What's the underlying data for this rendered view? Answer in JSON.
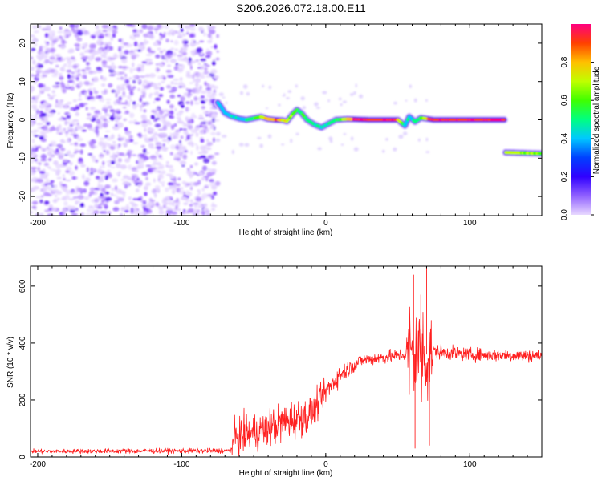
{
  "title": "S206.2026.072.18.00.E11",
  "chart_data": [
    {
      "type": "heatmap",
      "xlabel": "Height of straight line (km)",
      "ylabel": "Frequency (Hz)",
      "xlim": [
        -205,
        150
      ],
      "ylim": [
        -25,
        25
      ],
      "xticks": [
        -200,
        -100,
        0,
        100
      ],
      "yticks": [
        -20,
        -10,
        0,
        10,
        20
      ],
      "colorbar": {
        "label": "Normalized spectral amplitude",
        "range": [
          0,
          1
        ],
        "ticks": [
          "0.0",
          "0.2",
          "0.4",
          "0.6",
          "0.8"
        ],
        "tick_values": [
          0,
          0.2,
          0.4,
          0.6,
          0.8
        ],
        "colors": [
          "#ffffff",
          "#e8d8ff",
          "#9060ff",
          "#3000ff",
          "#0040ff",
          "#00c8ff",
          "#00ff80",
          "#40ff00",
          "#c0ff00",
          "#ffc000",
          "#ff4000",
          "#ff0080"
        ]
      },
      "noise_region": {
        "x": [
          -205,
          -75
        ],
        "y": [
          -25,
          25
        ],
        "amplitude": [
          0.02,
          0.22
        ]
      },
      "ridge": [
        {
          "x": -75,
          "y": 4.5
        },
        {
          "x": -73,
          "y": 3.5
        },
        {
          "x": -70,
          "y": 1.8
        },
        {
          "x": -66,
          "y": 1.0
        },
        {
          "x": -60,
          "y": 0.3
        },
        {
          "x": -55,
          "y": 0.0
        },
        {
          "x": -50,
          "y": 0.4
        },
        {
          "x": -45,
          "y": 0.8
        },
        {
          "x": -40,
          "y": 0.2
        },
        {
          "x": -35,
          "y": 0.0
        },
        {
          "x": -30,
          "y": -0.1
        },
        {
          "x": -27,
          "y": -0.4
        },
        {
          "x": -23,
          "y": 1.5
        },
        {
          "x": -20,
          "y": 2.6
        },
        {
          "x": -17,
          "y": 1.8
        },
        {
          "x": -13,
          "y": 0.0
        },
        {
          "x": -8,
          "y": -1.2
        },
        {
          "x": -3,
          "y": -2.0
        },
        {
          "x": 2,
          "y": -1.0
        },
        {
          "x": 7,
          "y": 0.0
        },
        {
          "x": 15,
          "y": 0.2
        },
        {
          "x": 30,
          "y": 0.0
        },
        {
          "x": 50,
          "y": 0.0
        },
        {
          "x": 55,
          "y": -1.5
        },
        {
          "x": 58,
          "y": 0.8
        },
        {
          "x": 62,
          "y": -0.5
        },
        {
          "x": 66,
          "y": 0.5
        },
        {
          "x": 75,
          "y": 0.0
        },
        {
          "x": 100,
          "y": 0.0
        },
        {
          "x": 124,
          "y": 0.0
        },
        {
          "x": 125,
          "y": -8.5
        },
        {
          "x": 150,
          "y": -8.8
        }
      ],
      "ridge_amplitude": [
        {
          "x": -75,
          "a": 0.4
        },
        {
          "x": -55,
          "a": 0.45
        },
        {
          "x": -35,
          "a": 0.85
        },
        {
          "x": -20,
          "a": 0.55
        },
        {
          "x": -5,
          "a": 0.45
        },
        {
          "x": 10,
          "a": 0.55
        },
        {
          "x": 20,
          "a": 0.95
        },
        {
          "x": 48,
          "a": 0.95
        },
        {
          "x": 55,
          "a": 0.45
        },
        {
          "x": 65,
          "a": 0.5
        },
        {
          "x": 72,
          "a": 0.95
        },
        {
          "x": 124,
          "a": 0.95
        },
        {
          "x": 125,
          "a": 0.7
        },
        {
          "x": 150,
          "a": 0.6
        }
      ]
    },
    {
      "type": "line",
      "xlabel": "Height of straight line (km)",
      "ylabel": "SNR (10 * v/v)",
      "xlim": [
        -205,
        150
      ],
      "ylim": [
        0,
        670
      ],
      "xticks": [
        -200,
        -100,
        0,
        100
      ],
      "yticks": [
        0,
        200,
        400,
        600
      ],
      "color": "#ff2020",
      "envelope": [
        {
          "x": -205,
          "mean": 20,
          "noise": 10
        },
        {
          "x": -66,
          "mean": 22,
          "noise": 12
        },
        {
          "x": -63,
          "mean": 70,
          "noise": 80
        },
        {
          "x": -45,
          "mean": 90,
          "noise": 90
        },
        {
          "x": -25,
          "mean": 130,
          "noise": 90
        },
        {
          "x": -10,
          "mean": 150,
          "noise": 80
        },
        {
          "x": 0,
          "mean": 230,
          "noise": 55
        },
        {
          "x": 10,
          "mean": 290,
          "noise": 45
        },
        {
          "x": 25,
          "mean": 340,
          "noise": 30
        },
        {
          "x": 55,
          "mean": 360,
          "noise": 30
        },
        {
          "x": 58,
          "mean": 360,
          "noise": 250
        },
        {
          "x": 72,
          "mean": 360,
          "noise": 250
        },
        {
          "x": 75,
          "mean": 370,
          "noise": 35
        },
        {
          "x": 100,
          "mean": 360,
          "noise": 30
        },
        {
          "x": 150,
          "mean": 355,
          "noise": 30
        }
      ],
      "spikes": [
        {
          "x": 61,
          "y": 640
        },
        {
          "x": 62,
          "y": 30
        },
        {
          "x": 66,
          "y": 570
        },
        {
          "x": 70,
          "y": 670
        },
        {
          "x": 72,
          "y": 40
        }
      ]
    }
  ]
}
